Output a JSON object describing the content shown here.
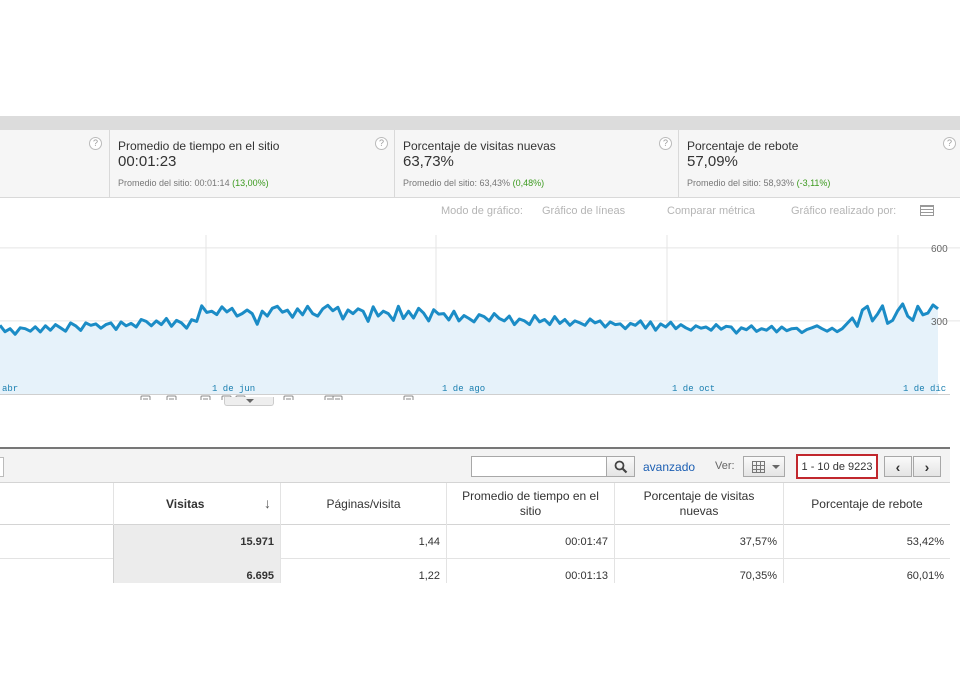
{
  "metrics": [
    {
      "title": "Promedio de tiempo en el sitio",
      "value": "00:01:23",
      "site_label": "Promedio del sitio: 00:01:14",
      "site_pct": "(13,00%)"
    },
    {
      "title": "Porcentaje de visitas nuevas",
      "value": "63,73%",
      "site_label": "Promedio del sitio: 63,43%",
      "site_pct": "(0,48%)"
    },
    {
      "title": "Porcentaje de rebote",
      "value": "57,09%",
      "site_label": "Promedio del sitio: 58,93%",
      "site_pct": "(-3,11%)"
    }
  ],
  "help_glyph": "?",
  "chart_controls": {
    "mode_label": "Modo de gráfico:",
    "mode_value": "Gráfico de líneas",
    "compare": "Comparar métrica",
    "made_by": "Gráfico realizado por:"
  },
  "chart_data": {
    "type": "line",
    "series": [
      {
        "values": [
          282,
          256,
          268,
          245,
          272,
          268,
          258,
          276,
          255,
          280,
          262,
          285,
          272,
          258,
          292,
          280,
          261,
          292,
          282,
          288,
          270,
          285,
          292,
          265,
          296,
          280,
          290,
          275,
          306,
          298,
          280,
          300,
          285,
          310,
          278,
          302,
          292,
          270,
          305,
          298,
          362,
          335,
          340,
          326,
          358,
          337,
          352,
          320,
          330,
          345,
          330,
          286,
          340,
          320,
          352,
          360,
          336,
          344,
          315,
          350,
          325,
          360,
          330,
          320,
          350,
          364,
          342,
          356,
          308,
          345,
          330,
          350,
          340,
          298,
          358,
          320,
          340,
          330,
          302,
          360,
          310,
          340,
          312,
          352,
          332,
          300,
          346,
          328,
          330,
          304,
          340,
          300,
          322,
          310,
          296,
          326,
          318,
          300,
          330,
          310,
          300,
          320,
          285,
          308,
          300,
          285,
          322,
          296,
          306,
          285,
          318,
          290,
          306,
          282,
          300,
          292,
          282,
          308,
          292,
          300,
          275,
          296,
          285,
          288,
          268,
          290,
          282,
          300,
          270,
          296,
          262,
          288,
          275,
          295,
          268,
          285,
          272,
          262,
          280,
          270,
          275,
          262,
          285,
          266,
          278,
          275,
          250,
          272,
          264,
          280,
          257,
          268,
          262,
          278,
          255,
          275,
          260,
          268,
          270,
          252,
          265,
          272,
          280,
          268,
          258,
          270,
          256,
          268,
          290,
          312,
          278,
          345,
          360,
          300,
          328,
          362,
          290,
          302,
          342,
          370,
          320,
          302,
          360,
          325,
          332,
          366,
          350
        ]
      }
    ],
    "y_ticks": [
      "600",
      "300"
    ],
    "x_ticks": [
      "abr",
      "1 de jun",
      "1 de ago",
      "1 de oct",
      "1 de dic"
    ],
    "annotation_count": 9
  },
  "table": {
    "search": {
      "value": "",
      "placeholder": ""
    },
    "advanced_link": "avanzado",
    "view_label": "Ver:",
    "pager": "1 - 10 de 9223",
    "prev": "‹",
    "next": "›",
    "sort_arrow": "↓",
    "headers": {
      "visits": "Visitas",
      "pages": "Páginas/visita",
      "avg_time": "Promedio de tiempo en el sitio",
      "new_visits": "Porcentaje de visitas nuevas",
      "bounce": "Porcentaje de rebote"
    },
    "rows": [
      {
        "visits": "15.971",
        "pages": "1,44",
        "avg_time": "00:01:47",
        "new_visits": "37,57%",
        "bounce": "53,42%"
      },
      {
        "visits": "6.695",
        "pages": "1,22",
        "avg_time": "00:01:13",
        "new_visits": "70,35%",
        "bounce": "60,01%"
      }
    ]
  },
  "colors": {
    "line": "#1b8cc6",
    "fill": "#e6f2fa",
    "pager_border": "#c1272d",
    "positive": "#3c9a1f",
    "link": "#1c5fb3"
  }
}
